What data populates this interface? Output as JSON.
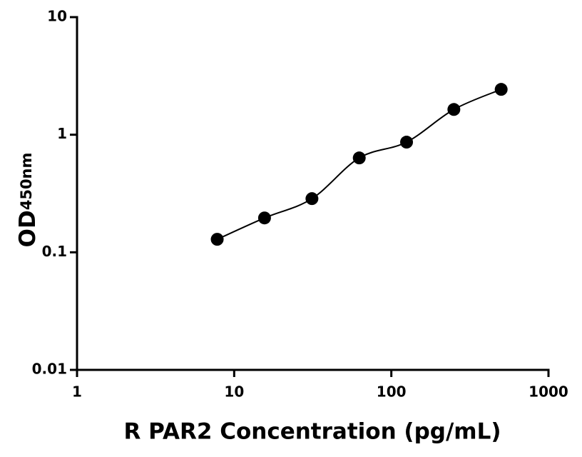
{
  "chart_data": {
    "type": "scatter",
    "xlabel": "R PAR2 Concentration (pg/mL)",
    "ylabel": "OD",
    "ylabel_subscript": "450nm",
    "x": [
      7.8,
      15.6,
      31.25,
      62.5,
      125,
      250,
      500
    ],
    "series": [
      {
        "color": "#000000",
        "values": [
          0.129,
          0.196,
          0.286,
          0.635,
          0.865,
          1.64,
          2.43
        ]
      }
    ],
    "xlog": true,
    "ylog": true,
    "xlim": [
      1,
      1000
    ],
    "ylim": [
      0.01,
      10
    ],
    "xticks": [
      1,
      10,
      100,
      1000
    ],
    "yticks": [
      0.01,
      0.1,
      1,
      10
    ],
    "fit_curve": true
  }
}
